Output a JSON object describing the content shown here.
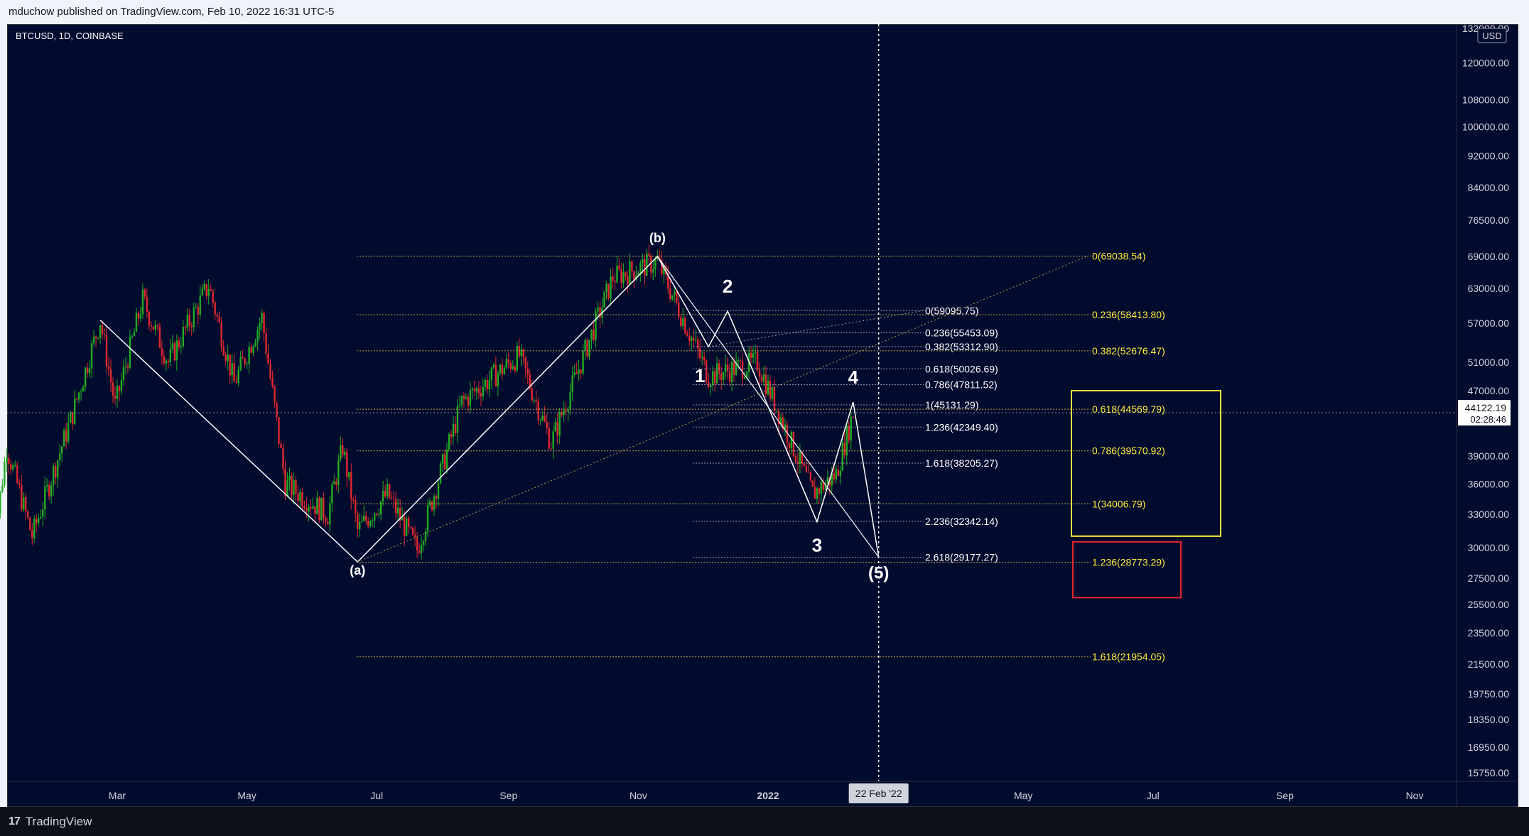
{
  "publish_info": "mduchow published on TradingView.com, Feb 10, 2022 16:31 UTC-5",
  "symbol": "BTCUSD, 1D, COINBASE",
  "currency": "USD",
  "footer": {
    "logo": "17",
    "brand": "TradingView"
  },
  "colors": {
    "background": "#010b2e",
    "up": "#22ab24",
    "down": "#e0282e",
    "fib_yellow": "#ffeb3b",
    "line": "#ffffff",
    "box_yellow": "#ffeb3b",
    "box_red": "#e0282e"
  },
  "current_price": {
    "value": "44122.19",
    "countdown": "02:28:46"
  },
  "crosshair_date": "22 Feb '22",
  "chart_data": {
    "type": "candlestick",
    "y_scale": "log",
    "ylim": [
      15000,
      132000
    ],
    "x_ticks": [
      "Mar",
      "May",
      "Jul",
      "Sep",
      "Nov",
      "2022",
      "May",
      "Jul",
      "Sep",
      "Nov"
    ],
    "y_ticks": [
      "132000.00",
      "120000.00",
      "108000.00",
      "100000.00",
      "92000.00",
      "84000.00",
      "76500.00",
      "69000.00",
      "63000.00",
      "57000.00",
      "51000.00",
      "47000.00",
      "39000.00",
      "36000.00",
      "33000.00",
      "30000.00",
      "27500.00",
      "25500.00",
      "23500.00",
      "21500.00",
      "19750.00",
      "18350.00",
      "16950.00",
      "15750.00"
    ],
    "x_tick_dates": [
      "2021-03-01",
      "2021-05-01",
      "2021-07-01",
      "2021-09-01",
      "2021-11-01",
      "2022-01-01",
      "2022-05-01",
      "2022-07-01",
      "2022-09-01",
      "2022-11-01"
    ],
    "x_range": [
      "2021-01-01",
      "2022-12-10"
    ],
    "candles_anchor": [
      [
        "2021-01-01",
        29000
      ],
      [
        "2021-01-08",
        40000
      ],
      [
        "2021-01-20",
        31000
      ],
      [
        "2021-02-08",
        44000
      ],
      [
        "2021-02-21",
        57500
      ],
      [
        "2021-02-28",
        45000
      ],
      [
        "2021-03-13",
        61000
      ],
      [
        "2021-03-25",
        51000
      ],
      [
        "2021-04-13",
        63500
      ],
      [
        "2021-04-25",
        48000
      ],
      [
        "2021-05-08",
        58000
      ],
      [
        "2021-05-19",
        36000
      ],
      [
        "2021-06-08",
        33000
      ],
      [
        "2021-06-15",
        40000
      ],
      [
        "2021-06-22",
        31500
      ],
      [
        "2021-07-06",
        35000
      ],
      [
        "2021-07-20",
        29800
      ],
      [
        "2021-08-10",
        45500
      ],
      [
        "2021-09-06",
        52000
      ],
      [
        "2021-09-21",
        40500
      ],
      [
        "2021-10-20",
        65000
      ],
      [
        "2021-11-10",
        68000
      ],
      [
        "2021-12-04",
        49000
      ],
      [
        "2021-12-27",
        51000
      ],
      [
        "2022-01-22",
        35000
      ],
      [
        "2022-02-02",
        37000
      ],
      [
        "2022-02-10",
        44122
      ]
    ],
    "waves": [
      {
        "label": "(a)",
        "date": "2021-06-22",
        "price": 28800
      },
      {
        "label": "(b)",
        "date": "2021-11-10",
        "price": 69000
      },
      {
        "label": "1",
        "date": "2021-12-04",
        "price": 53300
      },
      {
        "label": "2",
        "date": "2021-12-13",
        "price": 59000
      },
      {
        "label": "3",
        "date": "2022-01-24",
        "price": 32300
      },
      {
        "label": "4",
        "date": "2022-02-10",
        "price": 45500
      },
      {
        "label": "(5)",
        "date": "2022-02-22",
        "price": 29200
      }
    ],
    "fib_white": [
      {
        "label": "0(59095.75)",
        "price": 59095.75
      },
      {
        "label": "0.236(55453.09)",
        "price": 55453.09
      },
      {
        "label": "0.382(53312.90)",
        "price": 53312.9
      },
      {
        "label": "0.618(50026.69)",
        "price": 50026.69
      },
      {
        "label": "0.786(47811.52)",
        "price": 47811.52
      },
      {
        "label": "1(45131.29)",
        "price": 45131.29
      },
      {
        "label": "1.236(42349.40)",
        "price": 42349.4
      },
      {
        "label": "1.618(38205.27)",
        "price": 38205.27
      },
      {
        "label": "2.236(32342.14)",
        "price": 32342.14
      },
      {
        "label": "2.618(29177.27)",
        "price": 29177.27
      }
    ],
    "fib_yellow": [
      {
        "label": "0(69038.54)",
        "price": 69038.54
      },
      {
        "label": "0.236(58413.80)",
        "price": 58413.8
      },
      {
        "label": "0.382(52676.47)",
        "price": 52676.47
      },
      {
        "label": "0.618(44569.79)",
        "price": 44569.79
      },
      {
        "label": "0.786(39570.92)",
        "price": 39570.92
      },
      {
        "label": "1(34006.79)",
        "price": 34006.79
      },
      {
        "label": "1.236(28773.29)",
        "price": 28773.29
      },
      {
        "label": "1.618(21954.05)",
        "price": 21954.05
      }
    ],
    "target_box_yellow": {
      "price_top": 47000,
      "price_bottom": 31000
    },
    "target_box_red": {
      "price_top": 30500,
      "price_bottom": 26000
    }
  }
}
